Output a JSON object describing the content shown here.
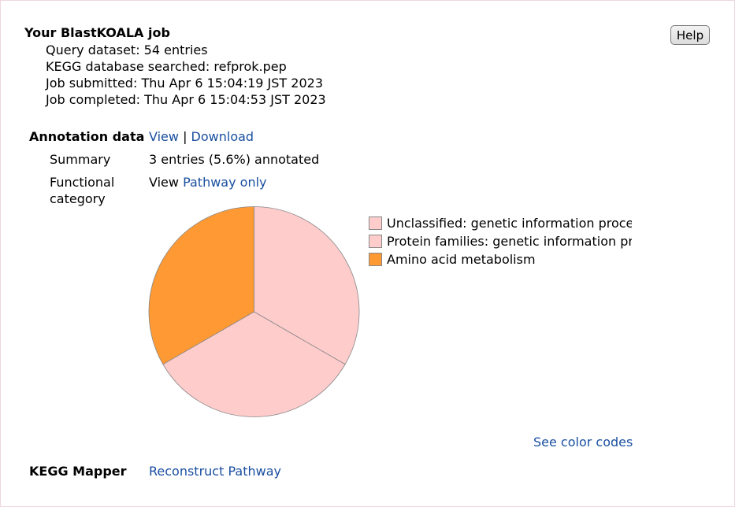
{
  "job": {
    "title": "Your BlastKOALA job",
    "query_dataset": "Query dataset: 54 entries",
    "database": "KEGG database searched: refprok.pep",
    "submitted": "Job submitted: Thu Apr 6 15:04:19 JST 2023",
    "completed": "Job completed: Thu Apr 6 15:04:53 JST 2023"
  },
  "help_label": "Help",
  "annotation": {
    "label": "Annotation data",
    "view_link": "View",
    "separator": "|",
    "download_link": "Download",
    "summary_label": "Summary",
    "summary_value": "3 entries (5.6%) annotated",
    "functional_label_1": "Functional",
    "functional_label_2": "category",
    "view_prefix": "View",
    "pathway_only_link": "Pathway only"
  },
  "chart_data": {
    "type": "pie",
    "slices": [
      {
        "label": "Unclassified: genetic information processing",
        "value": 1,
        "color": "#ffcccc"
      },
      {
        "label": "Protein families: genetic information processing",
        "value": 1,
        "color": "#ffcccc"
      },
      {
        "label": "Amino acid metabolism",
        "value": 1,
        "color": "#ff9933"
      }
    ],
    "legend_labels": [
      "Unclassified: genetic information processi",
      "Protein families: genetic information proce",
      "Amino acid metabolism"
    ],
    "legend_placement": "right"
  },
  "color_codes_link": "See color codes",
  "mapper": {
    "label": "KEGG Mapper",
    "reconstruct_link": "Reconstruct Pathway"
  }
}
